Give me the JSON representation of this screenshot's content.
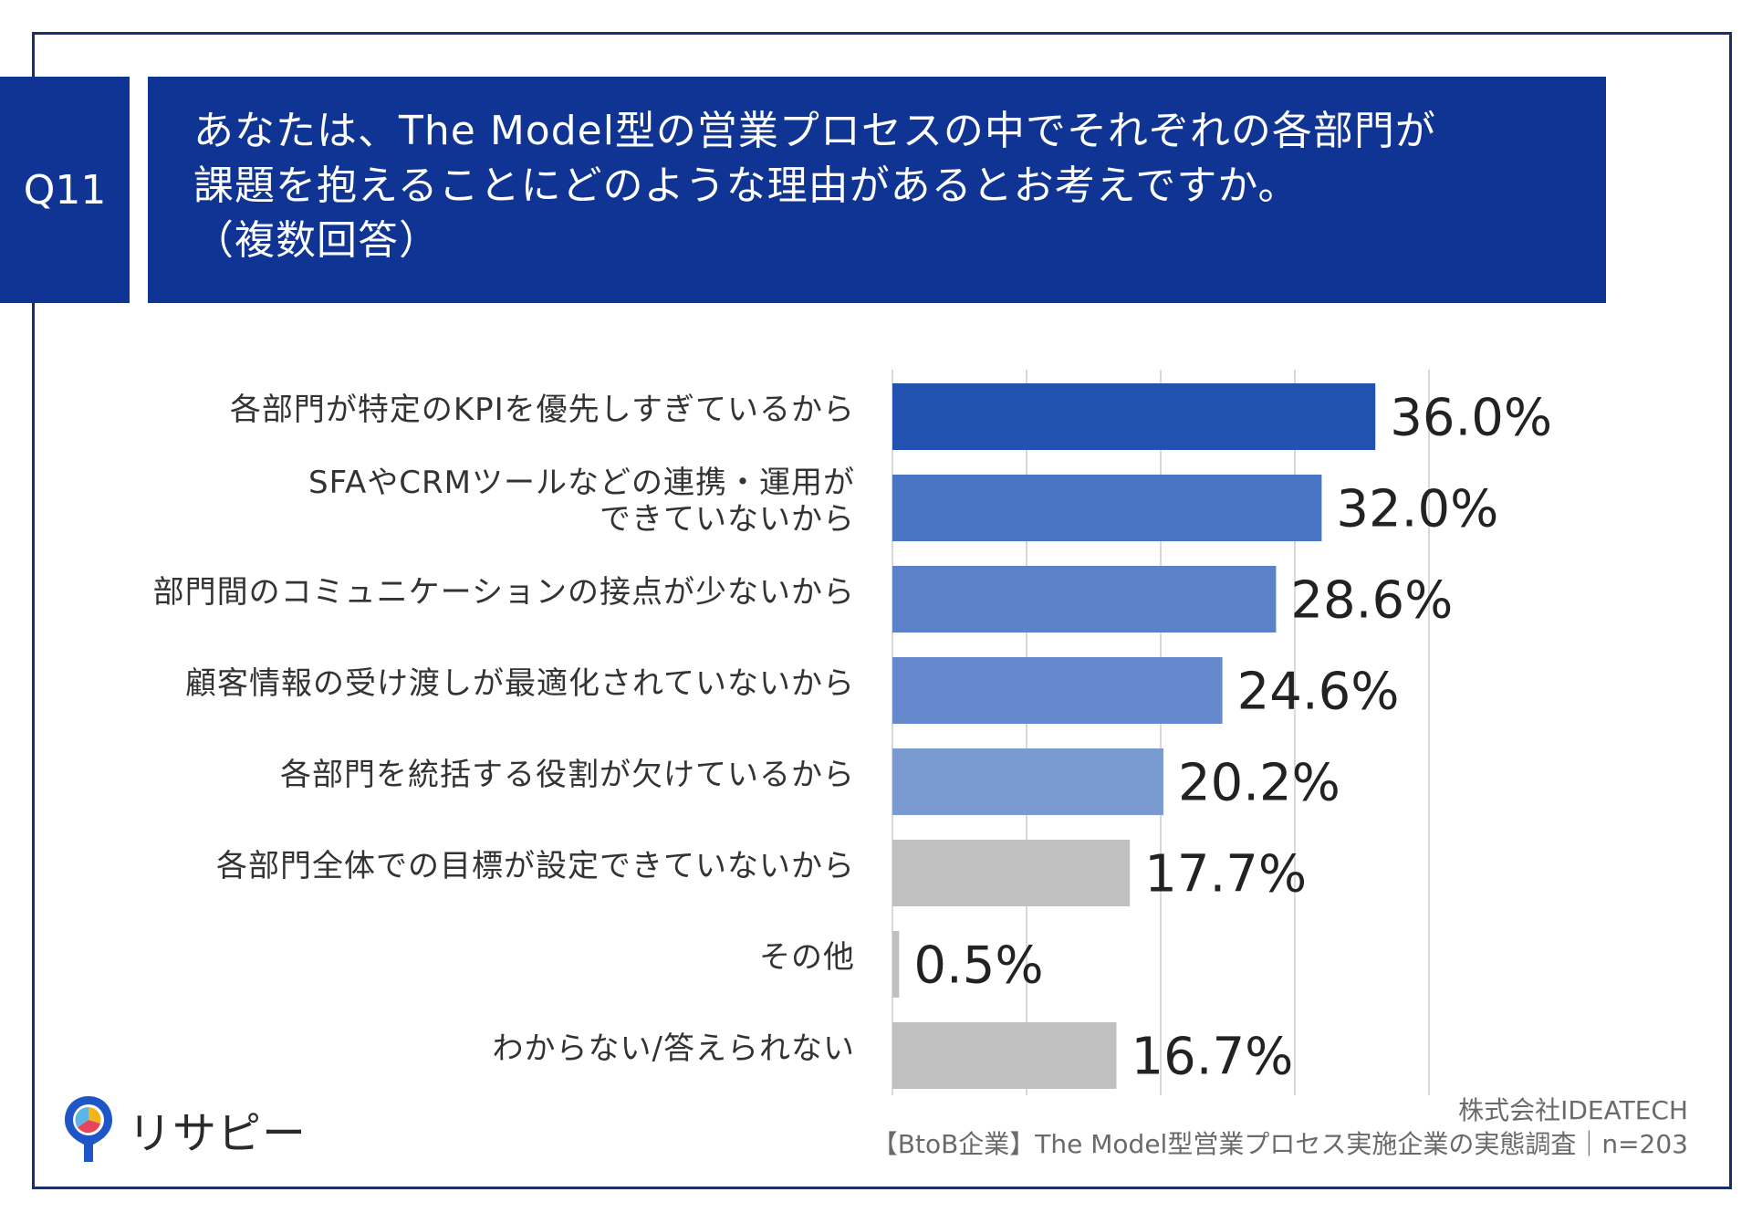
{
  "question": {
    "number": "Q11",
    "lines": [
      "あなたは、The Model型の営業プロセスの中でそれぞれの各部門が",
      "課題を抱えることにどのような理由があるとお考えですか。",
      "（複数回答）"
    ]
  },
  "chart_data": {
    "type": "bar",
    "orientation": "horizontal",
    "categories": [
      "各部門が特定のKPIを優先しすぎているから",
      "SFAやCRMツールなどの連携・運用が\nできていないから",
      "部門間のコミュニケーションの接点が少ないから",
      "顧客情報の受け渡しが最適化されていないから",
      "各部門を統括する役割が欠けているから",
      "各部門全体での目標が設定できていないから",
      "その他",
      "わからない/答えられない"
    ],
    "values": [
      36.0,
      32.0,
      28.6,
      24.6,
      20.2,
      17.7,
      0.5,
      16.7
    ],
    "value_labels": [
      "36.0%",
      "32.0%",
      "28.6%",
      "24.6%",
      "20.2%",
      "17.7%",
      "0.5%",
      "16.7%"
    ],
    "bar_colors": [
      "#2152b0",
      "#4a75c4",
      "#5b82c9",
      "#6689cd",
      "#7a9ad2",
      "#c0c0c0",
      "#c0c0c0",
      "#c0c0c0"
    ],
    "xlim": [
      0,
      40
    ],
    "grid": true
  },
  "footer": {
    "company": "株式会社IDEATECH",
    "survey": "【BtoB企業】The Model型営業プロセス実施企業の実態調査｜n=203"
  },
  "logo": {
    "text": "リサピー",
    "icon": "pin-logo-icon"
  }
}
